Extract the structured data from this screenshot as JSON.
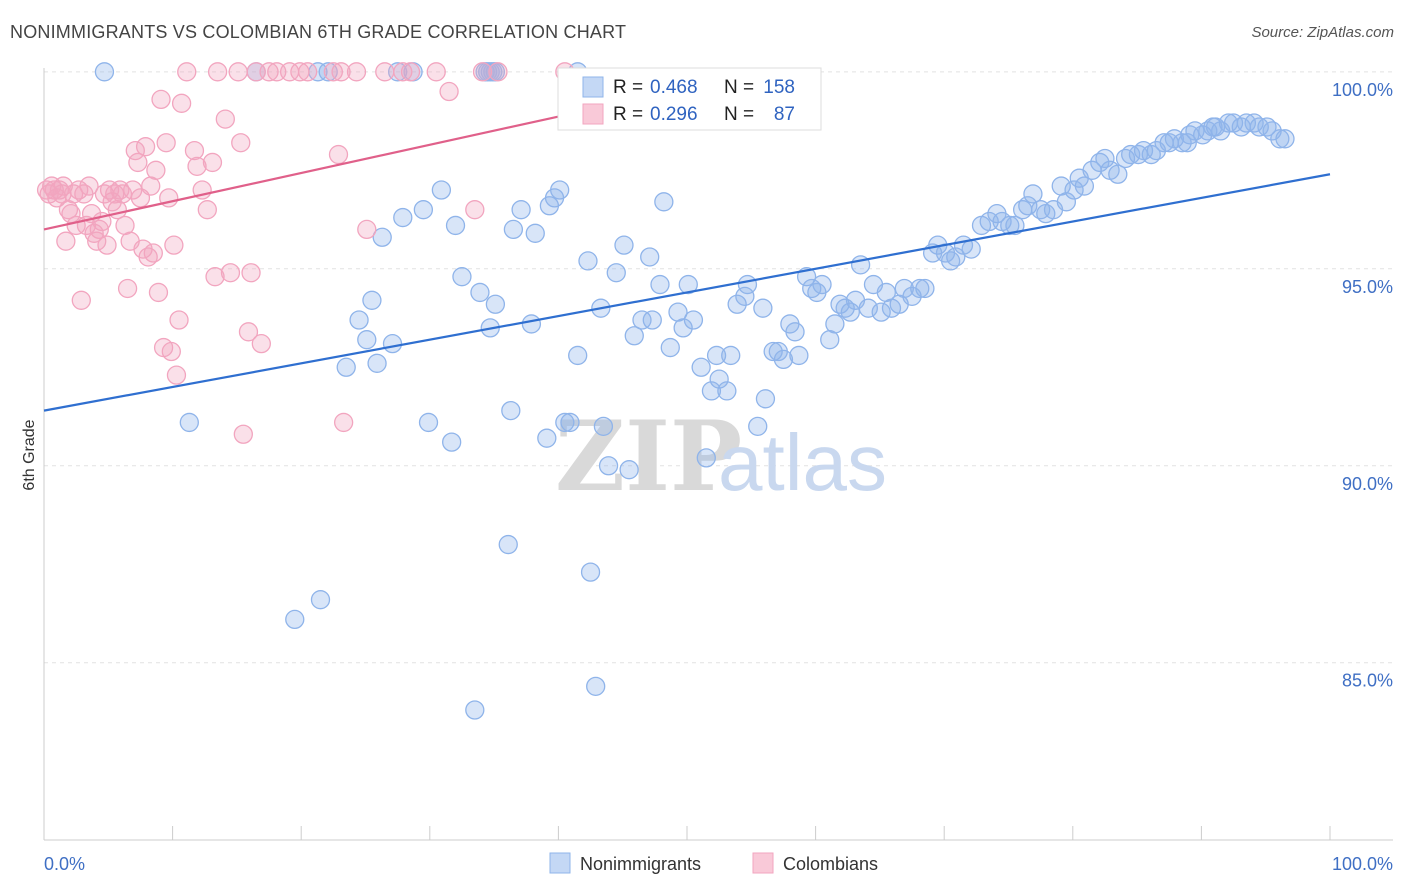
{
  "header": {
    "title": "NONIMMIGRANTS VS COLOMBIAN 6TH GRADE CORRELATION CHART",
    "source": "Source: ZipAtlas.com"
  },
  "watermark": {
    "zip": "ZIP",
    "atlas": "atlas"
  },
  "legend_box": {
    "rows": [
      {
        "r_label": "R =",
        "r_value": "0.468",
        "n_label": "N =",
        "n_value": "158",
        "color": "#8fb4ea"
      },
      {
        "r_label": "R =",
        "r_value": "0.296",
        "n_label": "N =",
        "n_value": "87",
        "color": "#f2a5bf"
      }
    ]
  },
  "bottom_legend": [
    {
      "label": "Nonimmigrants",
      "color": "#8fb4ea"
    },
    {
      "label": "Colombians",
      "color": "#f2a5bf"
    }
  ],
  "chart_data": {
    "type": "scatter",
    "title": "NONIMMIGRANTS VS COLOMBIAN 6TH GRADE CORRELATION CHART",
    "xlabel": "",
    "ylabel": "6th Grade",
    "xlim": [
      0,
      100
    ],
    "ylim": [
      80.5,
      100.3
    ],
    "y_ticks": [
      {
        "value": 100,
        "label": "100.0%"
      },
      {
        "value": 95,
        "label": "95.0%"
      },
      {
        "value": 90,
        "label": "90.0%"
      },
      {
        "value": 85,
        "label": "85.0%"
      }
    ],
    "x_tick_labels": {
      "left": "0.0%",
      "right": "100.0%"
    },
    "x_minor_ticks": [
      10,
      20,
      30,
      40,
      50,
      60,
      70,
      80,
      90,
      100
    ],
    "grid": true,
    "legend_placement": "top-center",
    "series": [
      {
        "name": "Nonimmigrants",
        "color": "#8fb4ea",
        "line_color": "#2f6fd0",
        "trend": {
          "x": [
            0,
            100
          ],
          "y": [
            91.4,
            97.4
          ]
        },
        "points": [
          [
            4.7,
            100
          ],
          [
            16.5,
            100
          ],
          [
            21.3,
            100
          ],
          [
            22.1,
            100
          ],
          [
            27.5,
            100
          ],
          [
            28.7,
            100
          ],
          [
            34.5,
            100
          ],
          [
            34.9,
            100
          ],
          [
            35.1,
            100
          ],
          [
            34.3,
            100
          ],
          [
            34.7,
            100
          ],
          [
            41.5,
            100
          ],
          [
            11.3,
            91.1
          ],
          [
            19.5,
            86.1
          ],
          [
            21.5,
            86.6
          ],
          [
            23.5,
            92.5
          ],
          [
            24.5,
            93.7
          ],
          [
            25.1,
            93.2
          ],
          [
            25.5,
            94.2
          ],
          [
            25.9,
            92.6
          ],
          [
            26.3,
            95.8
          ],
          [
            27.1,
            93.1
          ],
          [
            27.9,
            96.3
          ],
          [
            29.5,
            96.5
          ],
          [
            29.9,
            91.1
          ],
          [
            30.9,
            97.0
          ],
          [
            31.7,
            90.6
          ],
          [
            32.0,
            96.1
          ],
          [
            32.5,
            94.8
          ],
          [
            33.5,
            83.8
          ],
          [
            33.9,
            94.4
          ],
          [
            34.7,
            93.5
          ],
          [
            35.1,
            94.1
          ],
          [
            36.1,
            88.0
          ],
          [
            36.3,
            91.4
          ],
          [
            36.5,
            96.0
          ],
          [
            37.1,
            96.5
          ],
          [
            37.9,
            93.6
          ],
          [
            38.2,
            95.9
          ],
          [
            39.1,
            90.7
          ],
          [
            39.3,
            96.6
          ],
          [
            39.7,
            96.8
          ],
          [
            40.1,
            97.0
          ],
          [
            40.5,
            91.1
          ],
          [
            40.9,
            91.1
          ],
          [
            41.5,
            92.8
          ],
          [
            42.3,
            95.2
          ],
          [
            42.5,
            87.3
          ],
          [
            42.9,
            84.4
          ],
          [
            43.3,
            94.0
          ],
          [
            43.5,
            91.0
          ],
          [
            43.9,
            90.0
          ],
          [
            44.5,
            94.9
          ],
          [
            45.1,
            95.6
          ],
          [
            45.5,
            89.9
          ],
          [
            45.9,
            93.3
          ],
          [
            46.5,
            93.7
          ],
          [
            47.1,
            95.3
          ],
          [
            47.3,
            93.7
          ],
          [
            47.9,
            94.6
          ],
          [
            48.2,
            96.7
          ],
          [
            48.7,
            93.0
          ],
          [
            49.3,
            93.9
          ],
          [
            49.7,
            93.5
          ],
          [
            50.1,
            94.6
          ],
          [
            50.5,
            93.7
          ],
          [
            51.1,
            92.5
          ],
          [
            51.5,
            90.2
          ],
          [
            51.9,
            91.9
          ],
          [
            52.3,
            92.8
          ],
          [
            52.5,
            92.2
          ],
          [
            53.1,
            91.9
          ],
          [
            53.4,
            92.8
          ],
          [
            53.9,
            94.1
          ],
          [
            54.5,
            94.3
          ],
          [
            54.7,
            94.6
          ],
          [
            55.5,
            91.0
          ],
          [
            55.9,
            94.0
          ],
          [
            56.1,
            91.7
          ],
          [
            56.7,
            92.9
          ],
          [
            57.1,
            92.9
          ],
          [
            57.5,
            92.7
          ],
          [
            58.0,
            93.6
          ],
          [
            58.4,
            93.4
          ],
          [
            58.7,
            92.8
          ],
          [
            59.3,
            94.8
          ],
          [
            59.7,
            94.5
          ],
          [
            60.1,
            94.4
          ],
          [
            60.5,
            94.6
          ],
          [
            61.1,
            93.2
          ],
          [
            61.5,
            93.6
          ],
          [
            61.9,
            94.1
          ],
          [
            62.3,
            94.0
          ],
          [
            62.7,
            93.9
          ],
          [
            63.1,
            94.2
          ],
          [
            63.5,
            95.1
          ],
          [
            64.1,
            94.0
          ],
          [
            64.5,
            94.6
          ],
          [
            65.1,
            93.9
          ],
          [
            65.5,
            94.4
          ],
          [
            65.9,
            94.0
          ],
          [
            66.5,
            94.1
          ],
          [
            66.9,
            94.5
          ],
          [
            67.5,
            94.3
          ],
          [
            68.1,
            94.5
          ],
          [
            68.5,
            94.5
          ],
          [
            69.1,
            95.4
          ],
          [
            69.5,
            95.6
          ],
          [
            70.1,
            95.4
          ],
          [
            70.5,
            95.2
          ],
          [
            70.9,
            95.3
          ],
          [
            71.5,
            95.6
          ],
          [
            72.1,
            95.5
          ],
          [
            72.9,
            96.1
          ],
          [
            73.5,
            96.2
          ],
          [
            74.1,
            96.4
          ],
          [
            74.5,
            96.2
          ],
          [
            75.1,
            96.1
          ],
          [
            75.5,
            96.1
          ],
          [
            76.1,
            96.5
          ],
          [
            76.5,
            96.6
          ],
          [
            76.9,
            96.9
          ],
          [
            77.5,
            96.5
          ],
          [
            77.9,
            96.4
          ],
          [
            78.5,
            96.5
          ],
          [
            79.1,
            97.1
          ],
          [
            79.5,
            96.7
          ],
          [
            80.1,
            97.0
          ],
          [
            80.5,
            97.3
          ],
          [
            80.9,
            97.1
          ],
          [
            81.5,
            97.5
          ],
          [
            82.1,
            97.7
          ],
          [
            82.5,
            97.8
          ],
          [
            82.9,
            97.5
          ],
          [
            83.5,
            97.4
          ],
          [
            84.1,
            97.8
          ],
          [
            84.5,
            97.9
          ],
          [
            85.1,
            97.9
          ],
          [
            85.5,
            98.0
          ],
          [
            86.1,
            97.9
          ],
          [
            86.5,
            98.0
          ],
          [
            87.1,
            98.2
          ],
          [
            87.5,
            98.2
          ],
          [
            87.9,
            98.3
          ],
          [
            88.5,
            98.2
          ],
          [
            89.1,
            98.4
          ],
          [
            89.5,
            98.5
          ],
          [
            90.1,
            98.4
          ],
          [
            90.5,
            98.5
          ],
          [
            91.1,
            98.6
          ],
          [
            91.5,
            98.5
          ],
          [
            92.1,
            98.7
          ],
          [
            92.5,
            98.7
          ],
          [
            93.1,
            98.6
          ],
          [
            93.5,
            98.7
          ],
          [
            94.1,
            98.7
          ],
          [
            94.5,
            98.6
          ],
          [
            95.1,
            98.6
          ],
          [
            95.5,
            98.5
          ],
          [
            96.1,
            98.3
          ],
          [
            96.5,
            98.3
          ],
          [
            90.9,
            98.6
          ],
          [
            88.9,
            98.2
          ]
        ]
      },
      {
        "name": "Colombians",
        "color": "#f2a5bf",
        "line_color": "#e0608a",
        "trend": {
          "x": [
            0,
            40.5
          ],
          "y": [
            96.0,
            98.9
          ]
        },
        "points": [
          [
            0.2,
            97.0
          ],
          [
            0.4,
            96.9
          ],
          [
            0.6,
            97.1
          ],
          [
            0.8,
            97.0
          ],
          [
            1.0,
            96.8
          ],
          [
            1.2,
            97.0
          ],
          [
            1.4,
            96.9
          ],
          [
            1.5,
            97.1
          ],
          [
            1.7,
            95.7
          ],
          [
            1.9,
            96.5
          ],
          [
            2.1,
            96.4
          ],
          [
            2.3,
            96.9
          ],
          [
            2.5,
            96.1
          ],
          [
            2.7,
            97.0
          ],
          [
            2.9,
            94.2
          ],
          [
            3.1,
            96.9
          ],
          [
            3.3,
            96.1
          ],
          [
            3.5,
            97.1
          ],
          [
            3.7,
            96.4
          ],
          [
            3.9,
            95.9
          ],
          [
            4.1,
            95.7
          ],
          [
            4.3,
            96.0
          ],
          [
            4.5,
            96.2
          ],
          [
            4.7,
            96.9
          ],
          [
            4.9,
            95.6
          ],
          [
            5.1,
            97.0
          ],
          [
            5.3,
            96.7
          ],
          [
            5.5,
            96.9
          ],
          [
            5.7,
            96.5
          ],
          [
            5.9,
            97.0
          ],
          [
            6.1,
            96.9
          ],
          [
            6.3,
            96.1
          ],
          [
            6.5,
            94.5
          ],
          [
            6.7,
            95.7
          ],
          [
            6.9,
            97.0
          ],
          [
            7.1,
            98.0
          ],
          [
            7.3,
            97.7
          ],
          [
            7.5,
            96.8
          ],
          [
            7.7,
            95.5
          ],
          [
            7.9,
            98.1
          ],
          [
            8.1,
            95.3
          ],
          [
            8.3,
            97.1
          ],
          [
            8.5,
            95.4
          ],
          [
            8.7,
            97.5
          ],
          [
            8.9,
            94.4
          ],
          [
            9.1,
            99.3
          ],
          [
            9.3,
            93.0
          ],
          [
            9.5,
            98.2
          ],
          [
            9.7,
            96.8
          ],
          [
            9.9,
            92.9
          ],
          [
            10.1,
            95.6
          ],
          [
            10.3,
            92.3
          ],
          [
            10.5,
            93.7
          ],
          [
            10.7,
            99.2
          ],
          [
            11.1,
            100
          ],
          [
            11.7,
            98.0
          ],
          [
            11.9,
            97.6
          ],
          [
            12.3,
            97.0
          ],
          [
            12.7,
            96.5
          ],
          [
            13.1,
            97.7
          ],
          [
            13.3,
            94.8
          ],
          [
            13.5,
            100
          ],
          [
            14.1,
            98.8
          ],
          [
            14.5,
            94.9
          ],
          [
            15.1,
            100
          ],
          [
            15.3,
            98.2
          ],
          [
            15.5,
            90.8
          ],
          [
            15.9,
            93.4
          ],
          [
            16.1,
            94.9
          ],
          [
            16.5,
            100
          ],
          [
            16.9,
            93.1
          ],
          [
            17.5,
            100
          ],
          [
            18.1,
            100
          ],
          [
            19.1,
            100
          ],
          [
            19.9,
            100
          ],
          [
            20.5,
            100
          ],
          [
            22.5,
            100
          ],
          [
            23.1,
            100
          ],
          [
            22.9,
            97.9
          ],
          [
            23.3,
            91.1
          ],
          [
            24.3,
            100
          ],
          [
            25.1,
            96.0
          ],
          [
            26.5,
            100
          ],
          [
            27.9,
            100
          ],
          [
            28.5,
            100
          ],
          [
            30.5,
            100
          ],
          [
            31.5,
            99.5
          ],
          [
            33.5,
            96.5
          ],
          [
            34.1,
            100
          ],
          [
            35.3,
            100
          ],
          [
            40.5,
            100
          ]
        ]
      }
    ]
  }
}
